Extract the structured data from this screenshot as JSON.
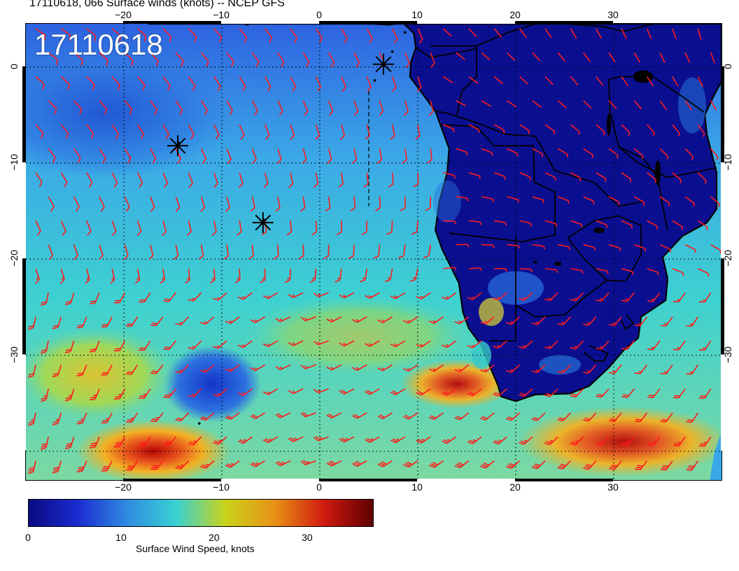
{
  "title": "17110618, 066 Surface winds (knots) -- NCEP GFS",
  "date_stamp": "17110618",
  "lon_labels": [
    "−20",
    "−10",
    "0",
    "10",
    "20",
    "30"
  ],
  "lat_labels": [
    "0",
    "−10",
    "−20",
    "−30"
  ],
  "colorbar": {
    "title": "Surface Wind Speed, knots",
    "tick_labels": [
      "0",
      "10",
      "20",
      "30"
    ],
    "range": [
      0,
      37
    ],
    "colors": [
      "#0a0a80",
      "#1a2cd0",
      "#2f8be0",
      "#38d2d2",
      "#c9d21a",
      "#e89216",
      "#d01a10",
      "#600000"
    ]
  },
  "map": {
    "lon_range": [
      -30,
      41
    ],
    "lat_range": [
      -43,
      4.5
    ],
    "markers": [
      {
        "name": "storm-marker-1",
        "lon": 6.5,
        "lat": 0.3
      },
      {
        "name": "storm-marker-2",
        "lon": -14.5,
        "lat": -8.2
      },
      {
        "name": "storm-marker-3",
        "lon": -5.8,
        "lat": -16.2
      }
    ],
    "wind_barb_color": "#ff1a1a",
    "land_color": "#0a0f90",
    "coast_color": "#000000"
  }
}
